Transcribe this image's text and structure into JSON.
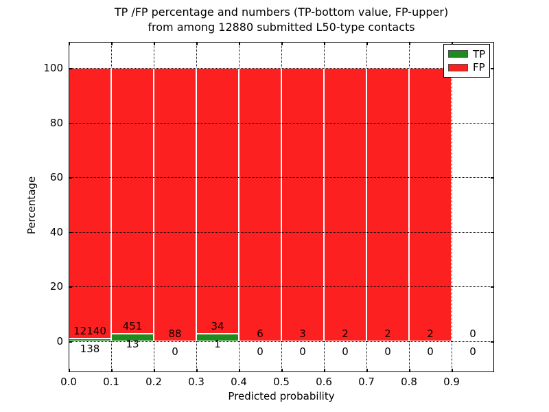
{
  "title": {
    "line1": "TP /FP percentage and numbers (TP-bottom value, FP-upper)",
    "line2": "from among 12880 submitted L50-type contacts"
  },
  "x_axis": {
    "label": "Predicted probability",
    "ticks": [
      "0.0",
      "0.1",
      "0.2",
      "0.3",
      "0.4",
      "0.5",
      "0.6",
      "0.7",
      "0.8",
      "0.9"
    ]
  },
  "y_axis": {
    "label": "Percentage",
    "ticks": [
      "0",
      "20",
      "40",
      "60",
      "80",
      "100"
    ]
  },
  "legend": {
    "items": [
      {
        "label": "TP",
        "color": "#1e8b1e"
      },
      {
        "label": "FP",
        "color": "#fd2020"
      }
    ]
  },
  "colors": {
    "tp": "#1e8b1e",
    "fp": "#fd2020",
    "bar_edge": "#ffffff",
    "grid": "#000000"
  },
  "chart_data": {
    "type": "bar",
    "stacked": true,
    "title": "TP /FP percentage and numbers (TP-bottom value, FP-upper) from among 12880 submitted L50-type contacts",
    "xlabel": "Predicted probability",
    "ylabel": "Percentage",
    "xlim": [
      0.0,
      1.0
    ],
    "ylim": [
      -10,
      110
    ],
    "grid": true,
    "legend_position": "upper right",
    "bin_width": 0.1,
    "bin_starts": [
      0.0,
      0.1,
      0.2,
      0.3,
      0.4,
      0.5,
      0.6,
      0.7,
      0.8,
      0.9
    ],
    "series": [
      {
        "name": "TP",
        "counts": [
          138,
          13,
          0,
          1,
          0,
          0,
          0,
          0,
          0,
          0
        ]
      },
      {
        "name": "FP",
        "counts": [
          12140,
          451,
          88,
          34,
          6,
          3,
          2,
          2,
          2,
          0
        ]
      }
    ],
    "total_submitted": 12880,
    "note": "Bars show stacked percentages TP/(TP+FP)*100 and FP/(TP+FP)*100 per bin; count labels printed at bar bottoms (TP below axis, FP above TP segment)."
  }
}
